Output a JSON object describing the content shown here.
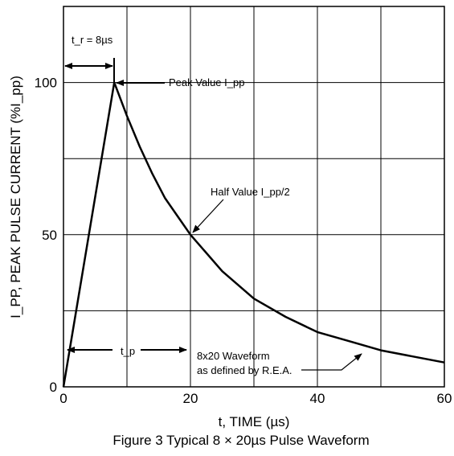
{
  "chart_data": {
    "type": "line",
    "xlabel": "t, TIME (µs)",
    "ylabel": "I_PP, PEAK PULSE CURRENT (%I_pp)",
    "xlim": [
      0,
      60
    ],
    "ylim": [
      0,
      125
    ],
    "x_ticks": [
      "0",
      "20",
      "40",
      "60"
    ],
    "y_ticks": [
      "0",
      "50",
      "100"
    ],
    "grid": true,
    "grid_x": [
      0,
      10,
      20,
      30,
      40,
      50,
      60
    ],
    "grid_y": [
      0,
      25,
      50,
      75,
      100,
      125
    ],
    "series": [
      {
        "x": [
          0,
          8,
          10,
          12,
          14,
          16,
          18,
          20,
          25,
          30,
          35,
          40,
          45,
          50,
          55,
          60
        ],
        "y": [
          0,
          100,
          89,
          79,
          70,
          62,
          56,
          50,
          38,
          29,
          23,
          18,
          15,
          12,
          10,
          8
        ]
      }
    ],
    "annotations": {
      "rise_time": "t_r = 8µs",
      "peak": "Peak Value I_pp",
      "half": "Half Value I_pp/2",
      "pulse_width": "t_p",
      "waveform_line1": "8x20 Waveform",
      "waveform_line2": "as defined by R.E.A."
    },
    "caption": "Figure 3 Typical 8 × 20µs Pulse Waveform"
  }
}
